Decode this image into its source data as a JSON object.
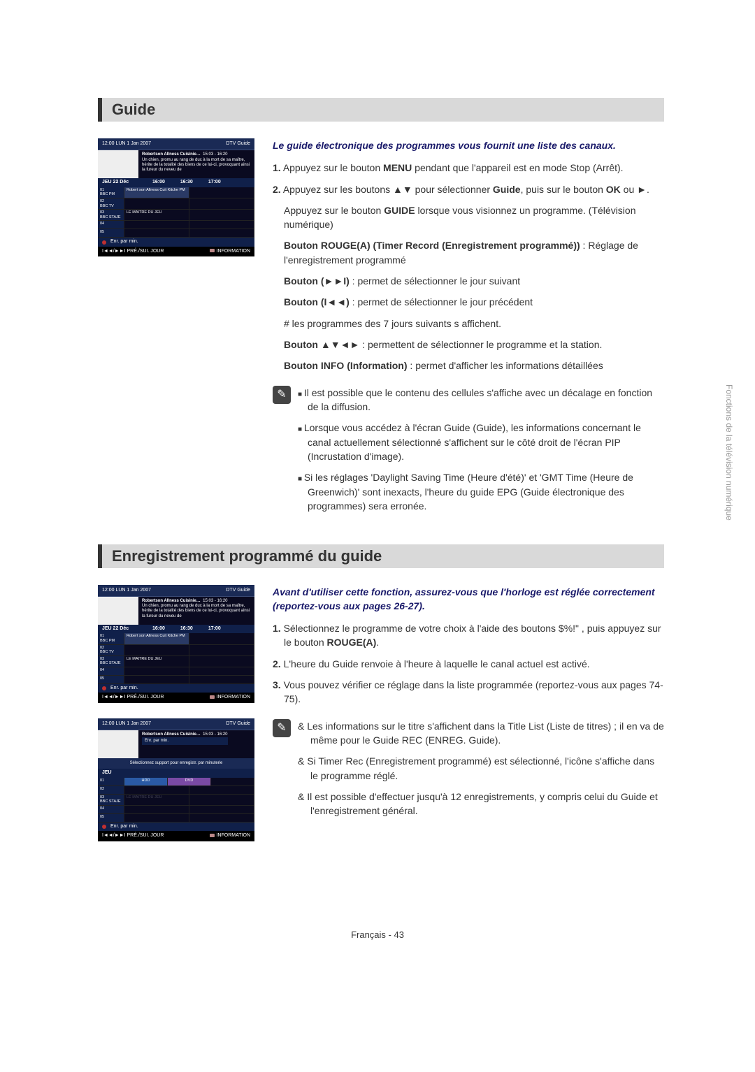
{
  "side_label": "Fonctions de la télévision numérique",
  "page_footer": "Français - 43",
  "section1": {
    "title": "Guide",
    "intro": "Le guide électronique des programmes vous fournit une liste des canaux.",
    "step1_a": "Appuyez sur le bouton ",
    "step1_b": "MENU",
    "step1_c": " pendant que l'appareil est en mode Stop (Arrêt).",
    "step2_a": "Appuyez sur les boutons ▲▼ pour sélectionner ",
    "step2_b": "Guide",
    "step2_c": ", puis sur le bouton ",
    "step2_d": "OK",
    "step2_e": " ou ►.",
    "step2_sub_a": "Appuyez sur le bouton ",
    "step2_sub_b": "GUIDE",
    "step2_sub_c": " lorsque vous visionnez un programme. (Télévision numérique)",
    "btn_red_a": "Bouton ROUGE(A) (Timer Record (Enregistrement programmé))",
    "btn_red_b": " : Réglage de l'enregistrement programmé",
    "btn_ff_a": "Bouton (►►I)",
    "btn_ff_b": " : permet de sélectionner le jour suivant",
    "btn_rw_a": "Bouton (I◄◄)",
    "btn_rw_b": " : permet de sélectionner le jour précédent",
    "hash": "#   les programmes des 7 jours suivants s affichent.",
    "btn_nav_a": "Bouton ▲▼◄►",
    "btn_nav_b": " : permettent de sélectionner le programme et la station.",
    "btn_info_a": "Bouton INFO (Information)",
    "btn_info_b": " : permet d'afficher les informations détaillées",
    "note1": "Il est possible que le contenu des cellules s'affiche avec un décalage en fonction de la diffusion.",
    "note2": "Lorsque vous accédez à l'écran Guide (Guide), les informations concernant le canal actuellement sélectionné s'affichent sur le côté droit de l'écran PIP (Incrustation d'image).",
    "note3": "Si les réglages 'Daylight Saving Time (Heure d'été)' et 'GMT Time (Heure de Greenwich)' sont inexacts, l'heure du guide EPG (Guide électronique des programmes) sera erronée."
  },
  "section2": {
    "title": "Enregistrement programmé du guide",
    "intro": "Avant d'utiliser cette fonction, assurez-vous que l'horloge est réglée correctement (reportez-vous aux pages 26-27).",
    "s1_a": "Sélectionnez le programme de votre choix à l'aide des boutons $%!\"          , puis appuyez sur le bouton ",
    "s1_b": "ROUGE(A)",
    "s1_c": ".",
    "s2": "L'heure du Guide renvoie à l'heure à laquelle le canal actuel est activé.",
    "s3": "Vous pouvez vérifier ce réglage dans la liste programmée (reportez-vous aux pages 74-75).",
    "n1": "Les informations sur le titre s'affichent dans la Title List (Liste de titres) ; il en va de même pour le Guide REC (ENREG. Guide).",
    "n2": "Si Timer Rec (Enregistrement programmé) est sélectionné, l'icône s'affiche dans le programme réglé.",
    "n3": "Il est possible d'effectuer jusqu'à 12 enregistrements, y compris celui du Guide et l'enregistrement général."
  },
  "epg": {
    "clock": "12:00 LUN 1 Jan 2007",
    "brand": "DTV Guide",
    "prog_title": "Robertson Allness Cuisinie…",
    "prog_time": "15:03 - 16:20",
    "prog_desc": "Un chien, promu au rang de duc à la mort de sa maître, hérite de la totalité des biens de ce lui-ci, provoquant ainsi la fureur du neveu de",
    "daterow": "JEU 22 Déc",
    "t1": "16:00",
    "t2": "16:30",
    "t3": "17:00",
    "ch": [
      {
        "no": "01",
        "name": "BBC PM",
        "p1": "Robert son Allness Cuit\nKitche PM",
        "p2": ""
      },
      {
        "no": "02",
        "name": "BBC TV",
        "p1": "",
        "p2": ""
      },
      {
        "no": "03",
        "name": "BBC STAJE",
        "p1": "LE MAITRE DU JEU",
        "p2": ""
      },
      {
        "no": "04",
        "name": "",
        "p1": "",
        "p2": ""
      },
      {
        "no": "05",
        "name": "",
        "p1": "",
        "p2": ""
      }
    ],
    "rec_dot_color": "#c03030",
    "rec_label": "Enr. par min.",
    "nav_label": "I◄◄/►►I  PRÉ./SUI. JOUR",
    "info_label": "INFORMATION",
    "info_dot_color": "#c89070",
    "popup_title": "Enr. par min.",
    "popup_text": "Sélectionnez support pour enregistr. par minuterie",
    "popup_hdd": "HDD",
    "popup_dvd": "DVD"
  }
}
